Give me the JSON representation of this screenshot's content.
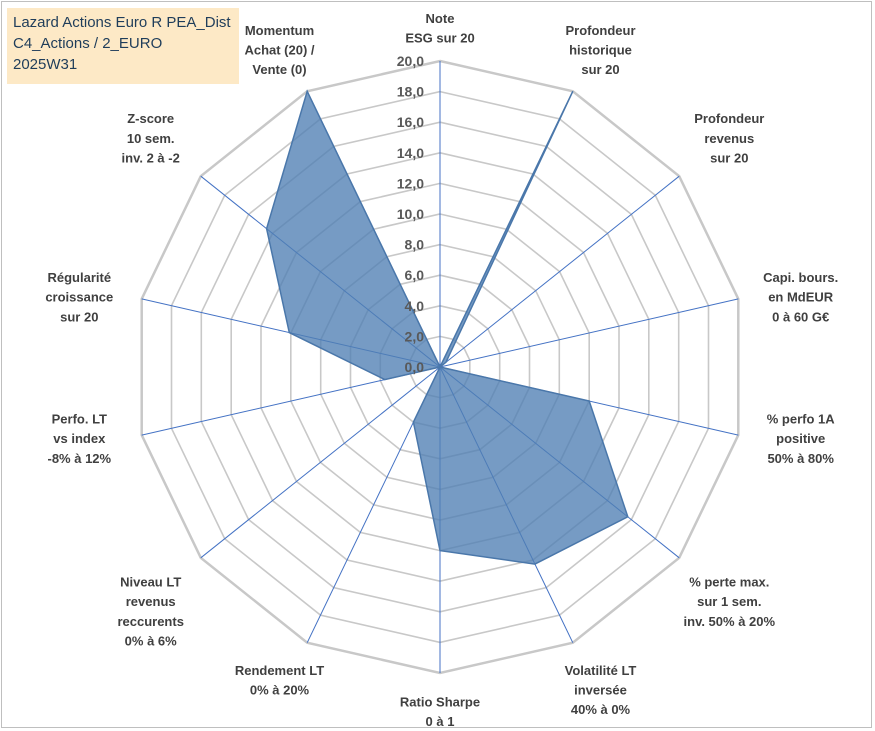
{
  "title": {
    "line1": "Lazard Actions Euro R PEA_Dist",
    "line2": "C4_Actions / 2_EURO",
    "line3": "2025W31"
  },
  "chart_data": {
    "type": "radar",
    "rlim": [
      0,
      20
    ],
    "tick_values": [
      0,
      2,
      4,
      6,
      8,
      10,
      12,
      14,
      16,
      18,
      20
    ],
    "tick_labels": [
      "0,0",
      "2,0",
      "4,0",
      "6,0",
      "8,0",
      "10,0",
      "12,0",
      "14,0",
      "16,0",
      "18,0",
      "20,0"
    ],
    "categories": [
      [
        "Note",
        "ESG sur 20"
      ],
      [
        "Profondeur",
        "historique",
        "sur 20"
      ],
      [
        "Profondeur",
        "revenus",
        "sur 20"
      ],
      [
        "Capi. bours.",
        "en MdEUR",
        "0 à 60 G€"
      ],
      [
        "% perfo 1A",
        "positive",
        "50% à 80%"
      ],
      [
        "% perte max.",
        "sur 1 sem.",
        "inv. 50% à 20%"
      ],
      [
        "Volatilité LT",
        "inversée",
        "40% à 0%"
      ],
      [
        "Ratio Sharpe",
        "0 à 1"
      ],
      [
        "Rendement LT",
        "0% à 20%"
      ],
      [
        "Niveau LT",
        "revenus",
        "reccurents",
        "0% à 6%"
      ],
      [
        "Perfo. LT",
        "vs index",
        "-8% à 12%"
      ],
      [
        "Régularité",
        "croissance",
        "sur 20"
      ],
      [
        "Z-score",
        "10 sem.",
        "inv. 2 à -2"
      ],
      [
        "Momentum",
        "Achat (20) /",
        "Vente (0)"
      ]
    ],
    "values": [
      0,
      20,
      0.5,
      0,
      10,
      15.7,
      14.3,
      12,
      4,
      0,
      3.7,
      10.1,
      14.5,
      20
    ],
    "grid": true,
    "legend": "none",
    "colors": {
      "fill": "#4f7fb4",
      "outline": "#4a77aa",
      "grid": "#c8c8c8",
      "spoke": "#4472c4"
    }
  }
}
